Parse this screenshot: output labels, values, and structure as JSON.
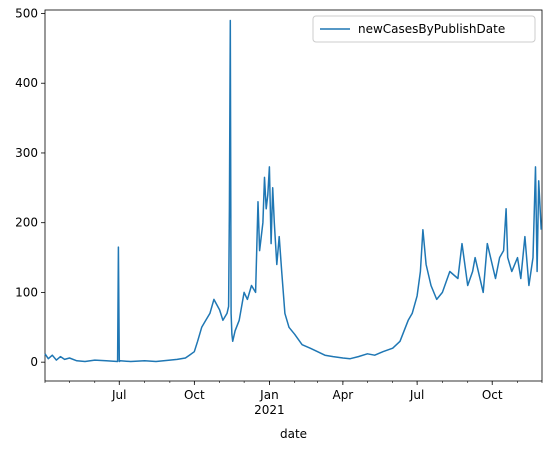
{
  "chart_data": {
    "type": "line",
    "title": "",
    "xlabel": "date",
    "ylabel": "",
    "xlim": [
      "2020-04-01",
      "2021-12-01"
    ],
    "ylim": [
      -27,
      505
    ],
    "grid": false,
    "legend_position": "top-right",
    "line_color": "#1f77b4",
    "x_ticks": [
      {
        "date": "2020-07-01",
        "label": "Jul",
        "sublabel": ""
      },
      {
        "date": "2020-10-01",
        "label": "Oct",
        "sublabel": ""
      },
      {
        "date": "2021-01-01",
        "label": "Jan",
        "sublabel": "2021"
      },
      {
        "date": "2021-04-01",
        "label": "Apr",
        "sublabel": ""
      },
      {
        "date": "2021-07-01",
        "label": "Jul",
        "sublabel": ""
      },
      {
        "date": "2021-10-01",
        "label": "Oct",
        "sublabel": ""
      }
    ],
    "y_ticks": [
      0,
      100,
      200,
      300,
      400,
      500
    ],
    "series": [
      {
        "name": "newCasesByPublishDate",
        "x": [
          "2020-04-01",
          "2020-04-05",
          "2020-04-10",
          "2020-04-15",
          "2020-04-20",
          "2020-04-25",
          "2020-05-01",
          "2020-05-10",
          "2020-05-20",
          "2020-06-01",
          "2020-06-15",
          "2020-06-29",
          "2020-06-30",
          "2020-07-01",
          "2020-07-02",
          "2020-07-15",
          "2020-08-01",
          "2020-08-15",
          "2020-09-01",
          "2020-09-10",
          "2020-09-20",
          "2020-09-25",
          "2020-10-01",
          "2020-10-05",
          "2020-10-10",
          "2020-10-15",
          "2020-10-20",
          "2020-10-25",
          "2020-11-01",
          "2020-11-05",
          "2020-11-10",
          "2020-11-12",
          "2020-11-13",
          "2020-11-14",
          "2020-11-15",
          "2020-11-16",
          "2020-11-17",
          "2020-11-20",
          "2020-11-25",
          "2020-12-01",
          "2020-12-05",
          "2020-12-10",
          "2020-12-15",
          "2020-12-18",
          "2020-12-20",
          "2020-12-24",
          "2020-12-26",
          "2020-12-28",
          "2020-12-30",
          "2021-01-01",
          "2021-01-03",
          "2021-01-05",
          "2021-01-07",
          "2021-01-10",
          "2021-01-13",
          "2021-01-16",
          "2021-01-20",
          "2021-01-25",
          "2021-02-01",
          "2021-02-10",
          "2021-02-20",
          "2021-03-01",
          "2021-03-10",
          "2021-03-20",
          "2021-04-01",
          "2021-04-10",
          "2021-04-20",
          "2021-05-01",
          "2021-05-10",
          "2021-05-20",
          "2021-06-01",
          "2021-06-10",
          "2021-06-15",
          "2021-06-20",
          "2021-06-25",
          "2021-07-01",
          "2021-07-05",
          "2021-07-08",
          "2021-07-12",
          "2021-07-18",
          "2021-07-25",
          "2021-08-01",
          "2021-08-10",
          "2021-08-20",
          "2021-08-25",
          "2021-09-01",
          "2021-09-07",
          "2021-09-10",
          "2021-09-20",
          "2021-09-25",
          "2021-10-01",
          "2021-10-05",
          "2021-10-10",
          "2021-10-15",
          "2021-10-18",
          "2021-10-20",
          "2021-10-25",
          "2021-11-01",
          "2021-11-05",
          "2021-11-10",
          "2021-11-15",
          "2021-11-20",
          "2021-11-23",
          "2021-11-25",
          "2021-11-27",
          "2021-11-30"
        ],
        "values": [
          12,
          5,
          10,
          3,
          8,
          4,
          6,
          2,
          1,
          3,
          2,
          1,
          165,
          1,
          2,
          1,
          2,
          1,
          3,
          4,
          6,
          10,
          15,
          30,
          50,
          60,
          70,
          90,
          75,
          60,
          70,
          80,
          220,
          490,
          70,
          40,
          30,
          45,
          60,
          100,
          90,
          110,
          100,
          230,
          160,
          200,
          265,
          220,
          240,
          280,
          170,
          250,
          200,
          140,
          180,
          130,
          70,
          50,
          40,
          25,
          20,
          15,
          10,
          8,
          6,
          5,
          8,
          12,
          10,
          15,
          20,
          30,
          45,
          60,
          70,
          95,
          130,
          190,
          140,
          110,
          90,
          100,
          130,
          120,
          170,
          110,
          130,
          150,
          100,
          170,
          140,
          120,
          150,
          160,
          220,
          150,
          130,
          150,
          120,
          180,
          110,
          150,
          280,
          130,
          260,
          190
        ]
      }
    ]
  }
}
